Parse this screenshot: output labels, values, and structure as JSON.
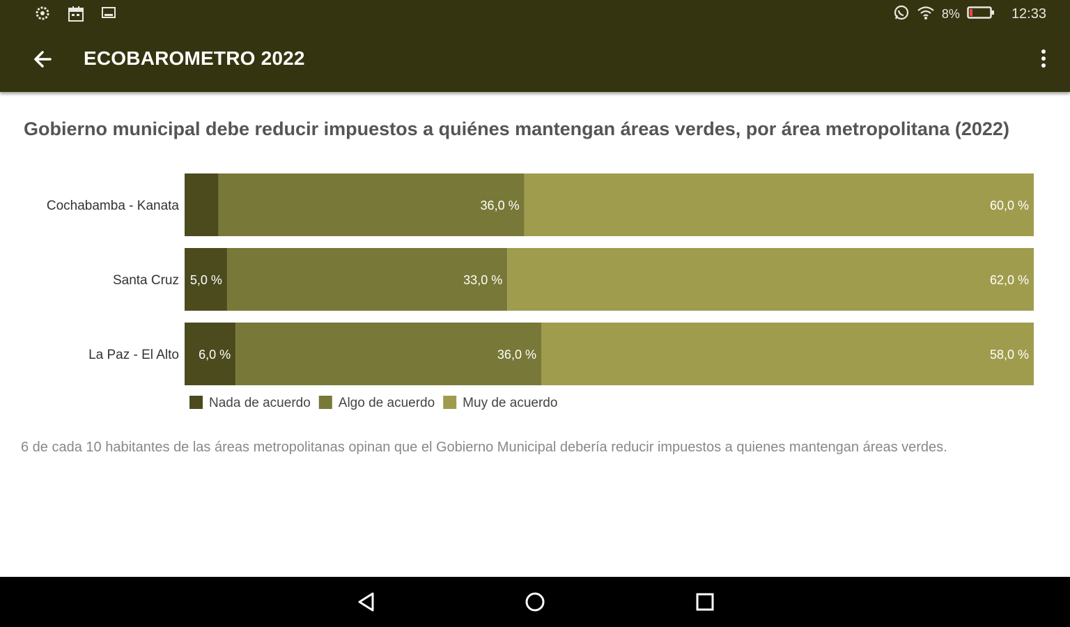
{
  "status_bar": {
    "left_icons": [
      "settings-gear-icon",
      "calendar-icon",
      "screenshot-icon"
    ],
    "right_icons": [
      "whatsapp-icon",
      "wifi-icon",
      "battery-icon"
    ],
    "battery_text": "8%",
    "time": "12:33"
  },
  "app_bar": {
    "title": "ECOBAROMETRO 2022",
    "back_icon": "arrow-back-icon",
    "menu_icon": "more-vert-icon"
  },
  "chart_data": {
    "type": "bar",
    "orientation": "horizontal",
    "stacked": true,
    "title": "Gobierno municipal debe reducir impuestos a quiénes mantengan áreas verdes, por área metropolitana (2022)",
    "categories": [
      "Cochabamba - Kanata",
      "Santa Cruz",
      "La Paz - El Alto"
    ],
    "series": [
      {
        "name": "Nada de acuerdo",
        "values": [
          4.0,
          5.0,
          6.0
        ],
        "labels": [
          "",
          "5,0 %",
          "6,0 %"
        ],
        "color": "#4b4b1e"
      },
      {
        "name": "Algo de acuerdo",
        "values": [
          36.0,
          33.0,
          36.0
        ],
        "labels": [
          "36,0 %",
          "33,0 %",
          "36,0 %"
        ],
        "color": "#787838"
      },
      {
        "name": "Muy de acuerdo",
        "values": [
          60.0,
          62.0,
          58.0
        ],
        "labels": [
          "60,0 %",
          "62,0 %",
          "58,0 %"
        ],
        "color": "#a09c4e"
      }
    ],
    "xlim": [
      0,
      100
    ],
    "legend": "bottom-left",
    "grid": false
  },
  "description": "6 de cada 10 habitantes de las áreas metropolitanas opinan que el Gobierno Municipal debería reducir impuestos a quienes mantengan áreas verdes.",
  "nav_bar": {
    "buttons": [
      "back-triangle-icon",
      "home-circle-icon",
      "recents-square-icon"
    ]
  }
}
